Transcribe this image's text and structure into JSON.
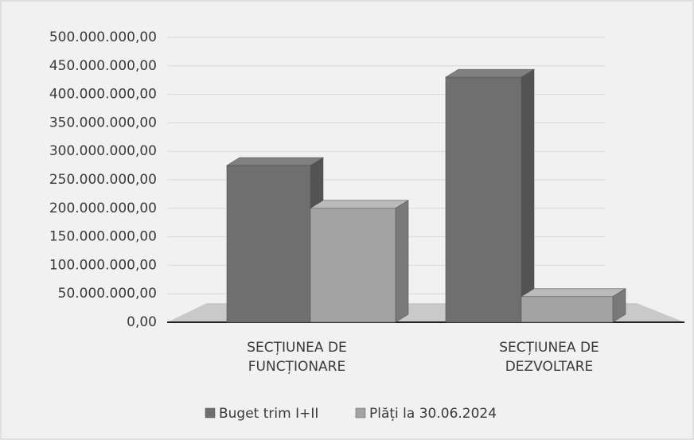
{
  "chart_data": {
    "type": "bar3d",
    "categories": [
      "SECȚIUNEA DE FUNCȚIONARE",
      "SECȚIUNEA DE DEZVOLTARE"
    ],
    "series": [
      {
        "name": "Buget trim I+II",
        "color": "#6f6f6f",
        "values": [
          275000000,
          430000000
        ]
      },
      {
        "name": "Plăți la 30.06.2024",
        "color": "#a3a3a3",
        "values": [
          200000000,
          45000000
        ]
      }
    ],
    "ylim": [
      0,
      500000000
    ],
    "yticks": [
      {
        "value": 0,
        "label": "0,00"
      },
      {
        "value": 50000000,
        "label": "50.000.000,00"
      },
      {
        "value": 100000000,
        "label": "100.000.000,00"
      },
      {
        "value": 150000000,
        "label": "150.000.000,00"
      },
      {
        "value": 200000000,
        "label": "200.000.000,00"
      },
      {
        "value": 250000000,
        "label": "250.000.000,00"
      },
      {
        "value": 300000000,
        "label": "300.000.000,00"
      },
      {
        "value": 350000000,
        "label": "350.000.000,00"
      },
      {
        "value": 400000000,
        "label": "400.000.000,00"
      },
      {
        "value": 450000000,
        "label": "450.000.000,00"
      },
      {
        "value": 500000000,
        "label": "500.000.000,00"
      }
    ],
    "grid": true,
    "legend": "bottom"
  }
}
